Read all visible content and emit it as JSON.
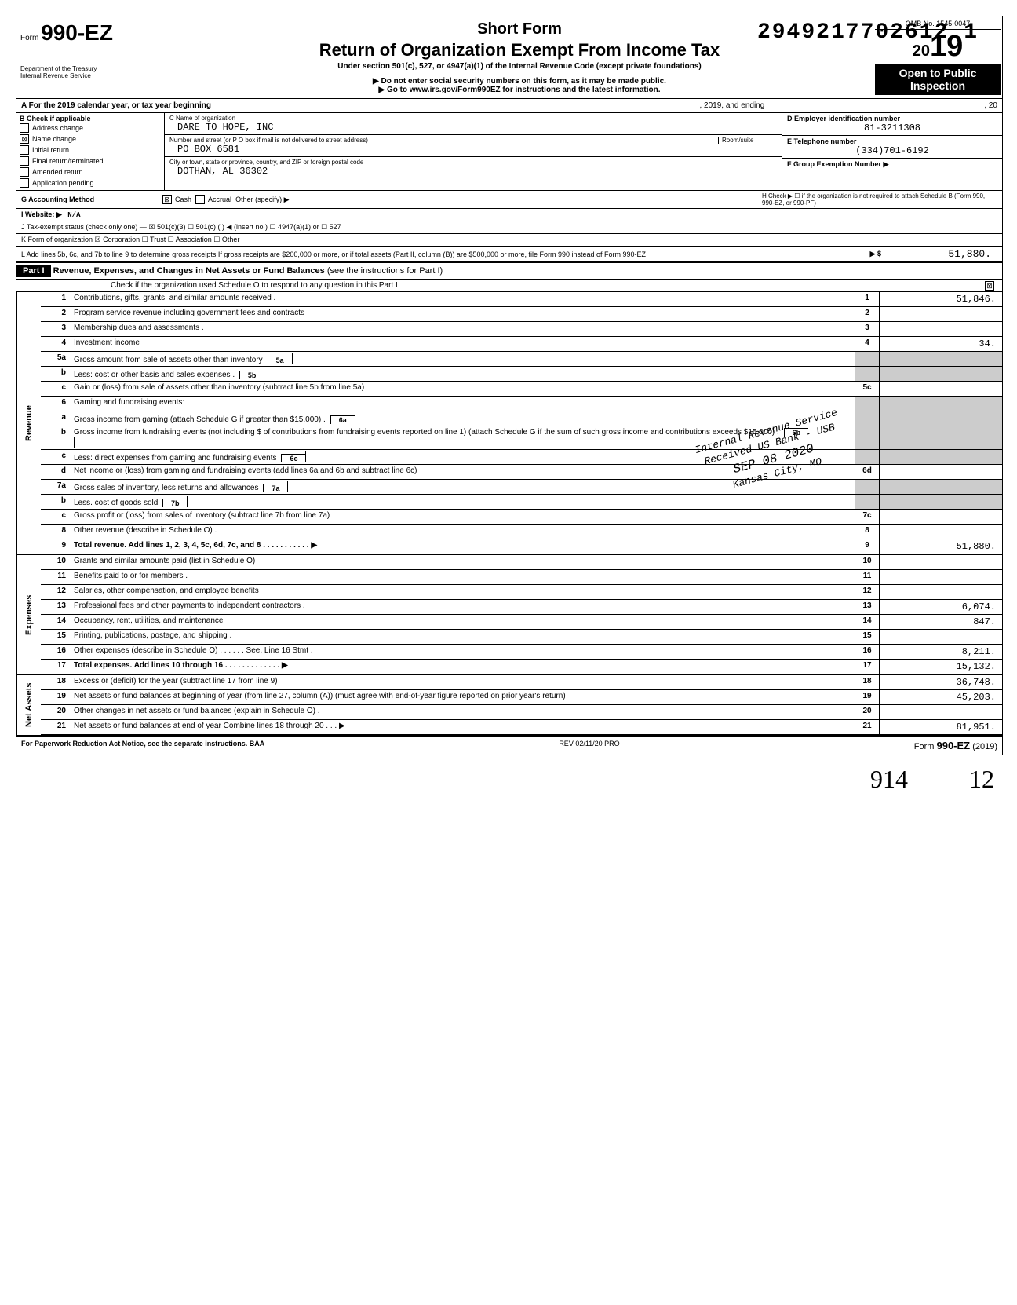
{
  "top_number": "2949217702612 1",
  "header": {
    "form_word": "Form",
    "form_number": "990-EZ",
    "dept": "Department of the Treasury\nInternal Revenue Service",
    "short_form": "Short Form",
    "main_title": "Return of Organization Exempt From Income Tax",
    "subtitle": "Under section 501(c), 527, or 4947(a)(1) of the Internal Revenue Code (except private foundations)",
    "note1": "▶ Do not enter social security numbers on this form, as it may be made public.",
    "note2": "▶ Go to www.irs.gov/Form990EZ for instructions and the latest information.",
    "omb": "OMB No. 1545-0047",
    "year": "2019",
    "open": "Open to Public Inspection"
  },
  "row_a": {
    "label_start": "A For the 2019 calendar year, or tax year beginning",
    "mid": ", 2019, and ending",
    "end": ", 20"
  },
  "col_b": {
    "header": "B Check if applicable",
    "items": [
      {
        "label": "Address change",
        "checked": false
      },
      {
        "label": "Name change",
        "checked": true
      },
      {
        "label": "Initial return",
        "checked": false
      },
      {
        "label": "Final return/terminated",
        "checked": false
      },
      {
        "label": "Amended return",
        "checked": false
      },
      {
        "label": "Application pending",
        "checked": false
      }
    ]
  },
  "col_c": {
    "name_label": "C Name of organization",
    "name": "DARE TO HOPE, INC",
    "street_label": "Number and street (or P O box if mail is not delivered to street address)",
    "room_label": "Room/suite",
    "street": "PO BOX 6581",
    "city_label": "City or town, state or province, country, and ZIP or foreign postal code",
    "city": "DOTHAN, AL 36302"
  },
  "col_d": {
    "d_label": "D Employer identification number",
    "d_value": "81-3211308",
    "e_label": "E Telephone number",
    "e_value": "(334)701-6192",
    "f_label": "F Group Exemption Number ▶"
  },
  "row_g": {
    "label": "G Accounting Method",
    "cash": "Cash",
    "accrual": "Accrual",
    "other": "Other (specify) ▶"
  },
  "row_h": "H Check ▶ ☐ if the organization is not required to attach Schedule B (Form 990, 990-EZ, or 990-PF)",
  "row_i": {
    "label": "I Website: ▶",
    "value": "N/A"
  },
  "row_j": "J Tax-exempt status (check only one) — ☒ 501(c)(3)  ☐ 501(c) (    ) ◀ (insert no ) ☐ 4947(a)(1) or  ☐ 527",
  "row_k": "K Form of organization   ☒ Corporation   ☐ Trust   ☐ Association   ☐ Other",
  "row_l": {
    "text": "L Add lines 5b, 6c, and 7b to line 9 to determine gross receipts  If gross receipts are $200,000 or more, or if total assets (Part II, column (B)) are $500,000 or more, file Form 990 instead of Form 990-EZ",
    "arrow": "▶  $",
    "value": "51,880."
  },
  "part1": {
    "label": "Part I",
    "title": "Revenue, Expenses, and Changes in Net Assets or Fund Balances",
    "title_suffix": "(see the instructions for Part I)",
    "check_o": "Check if the organization used Schedule O to respond to any question in this Part I",
    "check_o_checked": "☒"
  },
  "sections": {
    "revenue": "Revenue",
    "expenses": "Expenses",
    "net": "Net Assets"
  },
  "lines": [
    {
      "n": "1",
      "d": "Contributions, gifts, grants, and similar amounts received .",
      "col": "1",
      "amt": "51,846."
    },
    {
      "n": "2",
      "d": "Program service revenue including government fees and contracts",
      "col": "2",
      "amt": ""
    },
    {
      "n": "3",
      "d": "Membership dues and assessments .",
      "col": "3",
      "amt": ""
    },
    {
      "n": "4",
      "d": "Investment income",
      "col": "4",
      "amt": "34."
    },
    {
      "n": "5a",
      "d": "Gross amount from sale of assets other than inventory",
      "inline": "5a"
    },
    {
      "n": "b",
      "d": "Less: cost or other basis and sales expenses .",
      "inline": "5b"
    },
    {
      "n": "c",
      "d": "Gain or (loss) from sale of assets other than inventory (subtract line 5b from line 5a)",
      "col": "5c",
      "amt": ""
    },
    {
      "n": "6",
      "d": "Gaming and fundraising events:",
      "shaded": true
    },
    {
      "n": "a",
      "d": "Gross income from gaming (attach Schedule G if greater than $15,000) .",
      "inline": "6a",
      "shaded_right": true
    },
    {
      "n": "b",
      "d": "Gross income from fundraising events (not including  $                    of contributions from fundraising events reported on line 1) (attach Schedule G if the sum of such gross income and contributions exceeds $15,000) .",
      "inline": "6b",
      "shaded_right": true
    },
    {
      "n": "c",
      "d": "Less: direct expenses from gaming and fundraising events",
      "inline": "6c",
      "shaded_right": true
    },
    {
      "n": "d",
      "d": "Net income or (loss) from gaming and fundraising events (add lines 6a and 6b and subtract line 6c)",
      "col": "6d",
      "amt": ""
    },
    {
      "n": "7a",
      "d": "Gross sales of inventory, less returns and allowances",
      "inline": "7a",
      "shaded_right": true
    },
    {
      "n": "b",
      "d": "Less. cost of goods sold",
      "inline": "7b",
      "shaded_right": true
    },
    {
      "n": "c",
      "d": "Gross profit or (loss) from sales of inventory (subtract line 7b from line 7a)",
      "col": "7c",
      "amt": ""
    },
    {
      "n": "8",
      "d": "Other revenue (describe in Schedule O) .",
      "col": "8",
      "amt": ""
    },
    {
      "n": "9",
      "d": "Total revenue. Add lines 1, 2, 3, 4, 5c, 6d, 7c, and 8   .   .   .   .   .   .   .   .   .   .   .   ▶",
      "col": "9",
      "amt": "51,880.",
      "bold": true
    }
  ],
  "expense_lines": [
    {
      "n": "10",
      "d": "Grants and similar amounts paid (list in Schedule O)",
      "col": "10",
      "amt": ""
    },
    {
      "n": "11",
      "d": "Benefits paid to or for members  .",
      "col": "11",
      "amt": ""
    },
    {
      "n": "12",
      "d": "Salaries, other compensation, and employee benefits",
      "col": "12",
      "amt": ""
    },
    {
      "n": "13",
      "d": "Professional fees and other payments to independent contractors .",
      "col": "13",
      "amt": "6,074."
    },
    {
      "n": "14",
      "d": "Occupancy, rent, utilities, and maintenance",
      "col": "14",
      "amt": "847."
    },
    {
      "n": "15",
      "d": "Printing, publications, postage, and shipping .",
      "col": "15",
      "amt": ""
    },
    {
      "n": "16",
      "d": "Other expenses (describe in Schedule O) .   .   .   .   .   . See. Line 16 Stmt .",
      "col": "16",
      "amt": "8,211."
    },
    {
      "n": "17",
      "d": "Total expenses. Add lines 10 through 16   .   .   .   .   .   .   .   .   .   .   .   .   .   ▶",
      "col": "17",
      "amt": "15,132.",
      "bold": true
    }
  ],
  "net_lines": [
    {
      "n": "18",
      "d": "Excess or (deficit) for the year (subtract line 17 from line 9)",
      "col": "18",
      "amt": "36,748."
    },
    {
      "n": "19",
      "d": "Net assets or fund balances at beginning of year (from line 27, column (A)) (must agree with end-of-year figure reported on prior year's return)",
      "col": "19",
      "amt": "45,203."
    },
    {
      "n": "20",
      "d": "Other changes in net assets or fund balances (explain in Schedule O) .",
      "col": "20",
      "amt": ""
    },
    {
      "n": "21",
      "d": "Net assets or fund balances at end of year  Combine lines 18 through 20   .   .   .   ▶",
      "col": "21",
      "amt": "81,951."
    }
  ],
  "footer": {
    "left": "For Paperwork Reduction Act Notice, see the separate instructions. BAA",
    "mid": "REV 02/11/20 PRO",
    "right_form": "990-EZ",
    "right_year": "(2019)"
  },
  "stamp": {
    "l1": "Internal Revenue Service",
    "l2": "Received US Bank - USB",
    "l3": "SEP 08 2020",
    "l4": "Kansas City, MO"
  },
  "hand": {
    "n914": "914",
    "n12": "12"
  }
}
